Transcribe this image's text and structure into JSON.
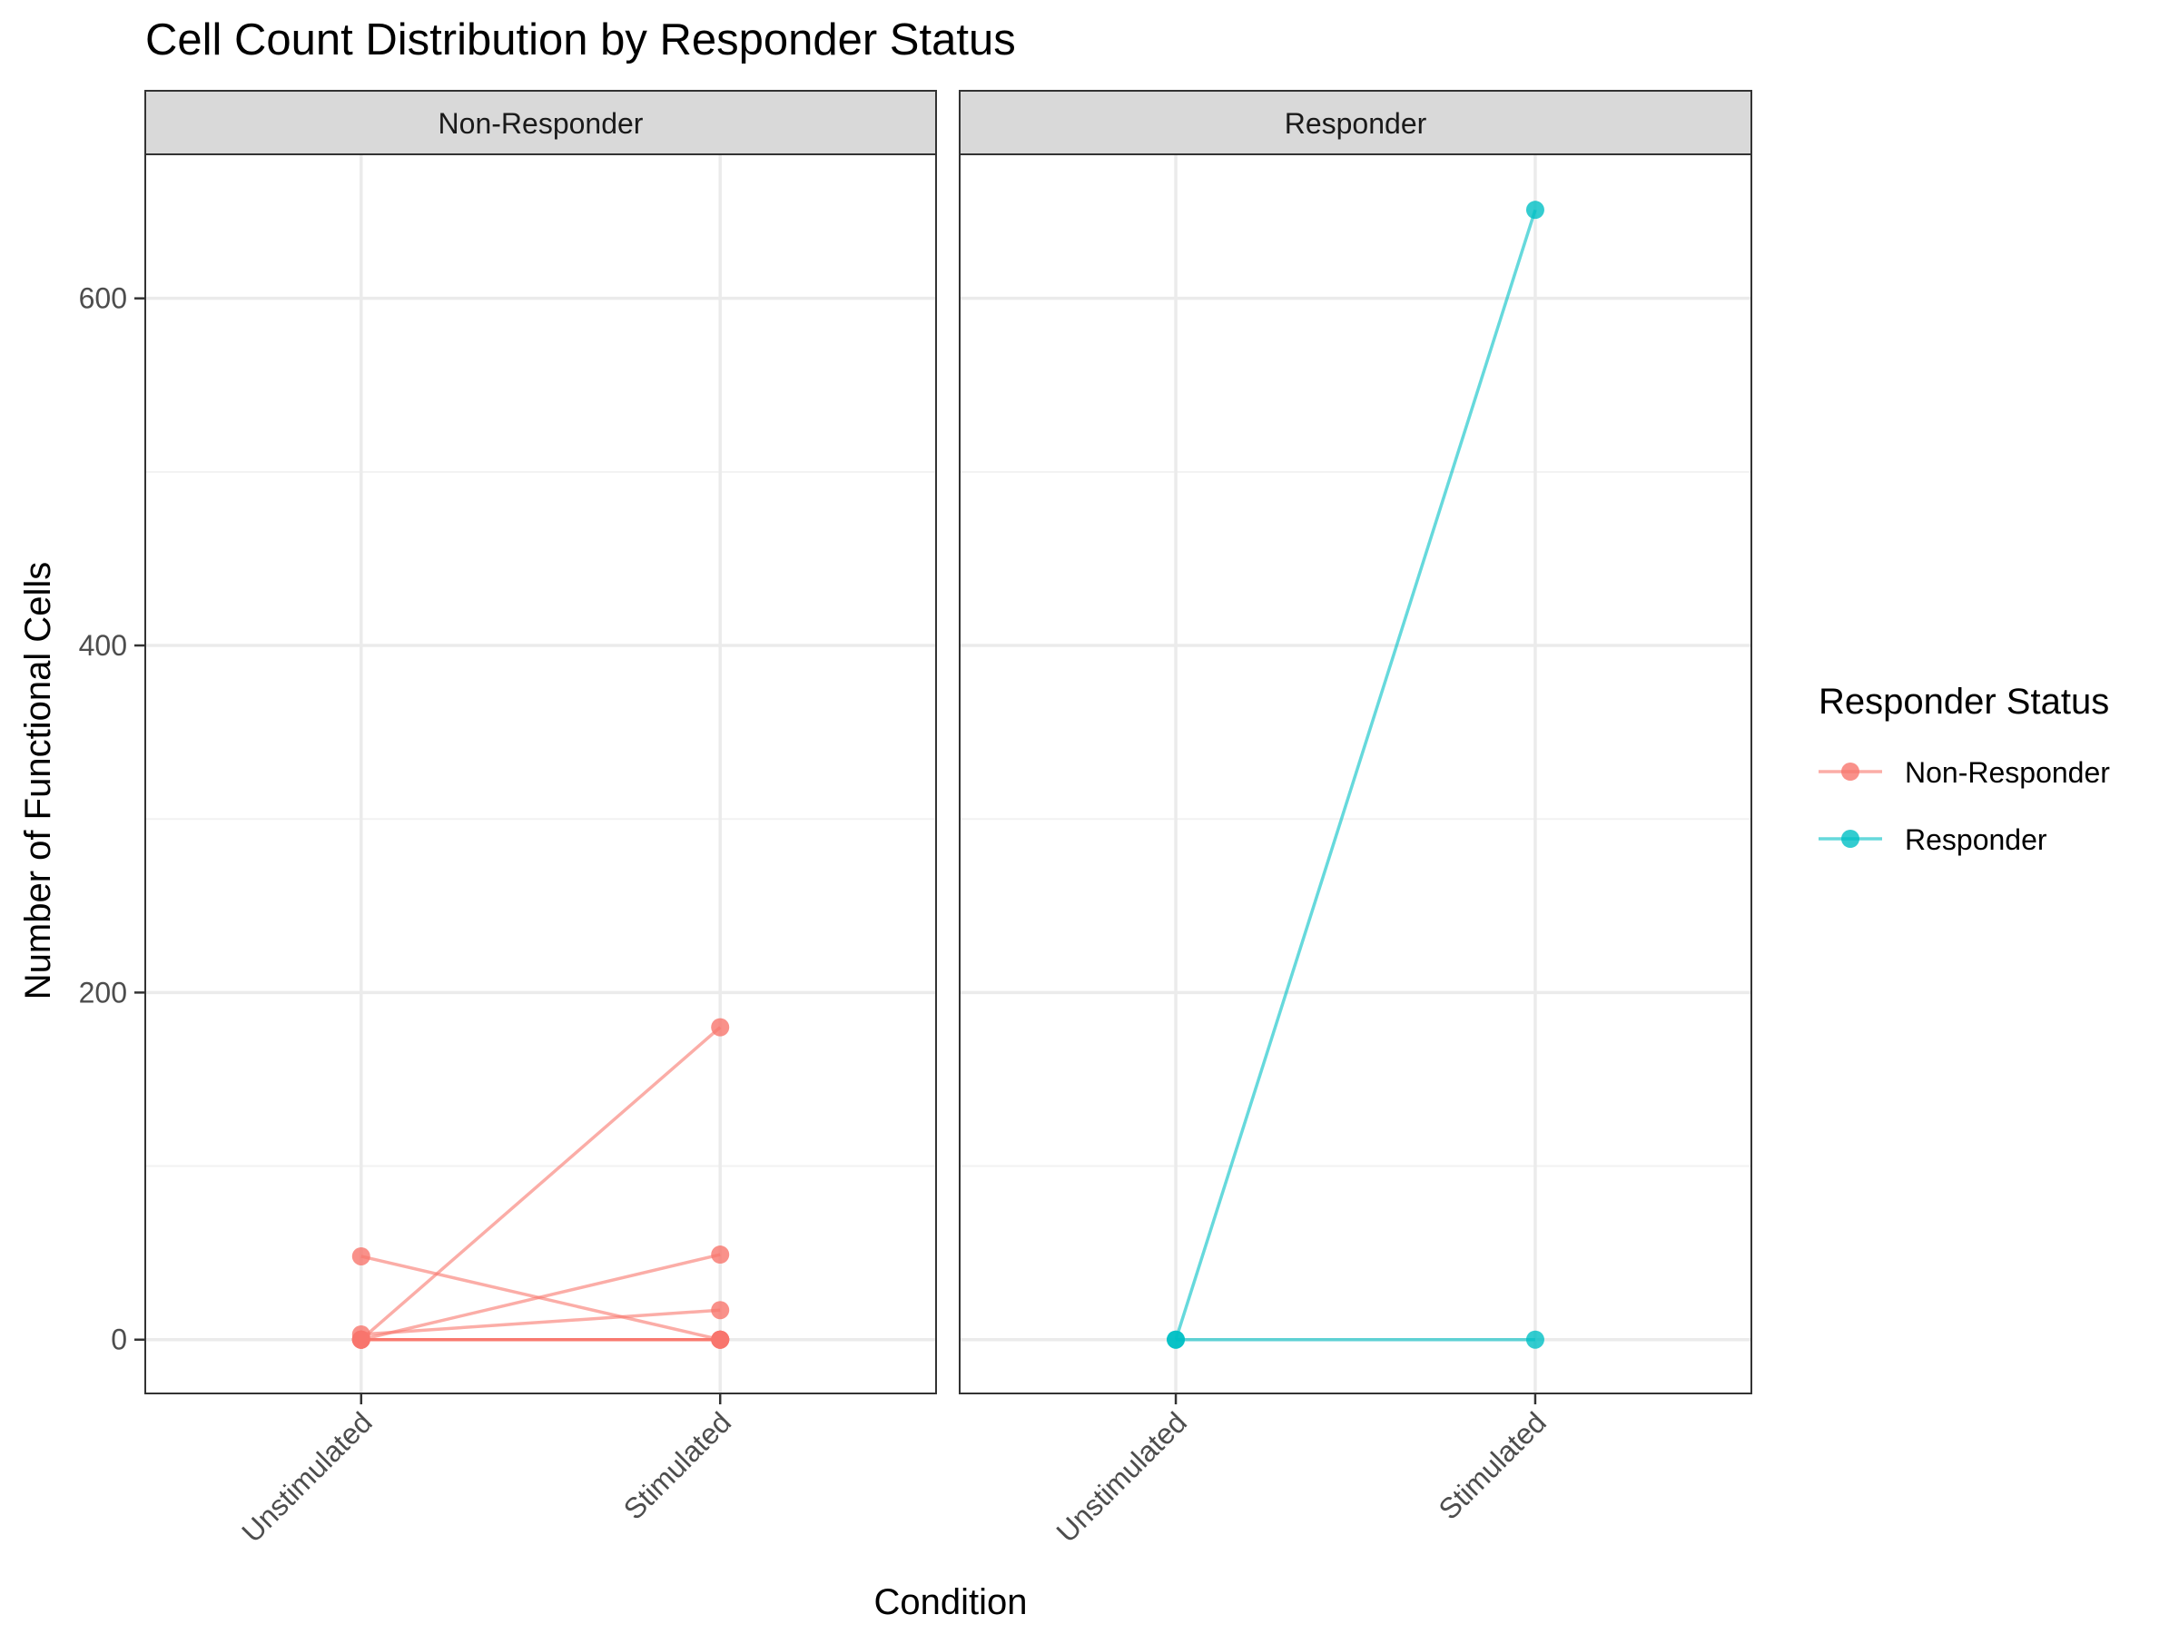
{
  "chart_data": {
    "type": "line",
    "title": "Cell Count Distribution by Responder Status",
    "xlabel": "Condition",
    "ylabel": "Number of Functional Cells",
    "categories": [
      "Unstimulated",
      "Stimulated"
    ],
    "ylim": [
      -31,
      683
    ],
    "y_ticks": [
      0,
      200,
      400,
      600
    ],
    "grid": true,
    "facets": [
      {
        "label": "Non-Responder",
        "color": "#F8766D",
        "pairs": [
          [
            0,
            180
          ],
          [
            48,
            0
          ],
          [
            0,
            49
          ],
          [
            3,
            17
          ],
          [
            0,
            0
          ],
          [
            0,
            0
          ],
          [
            0,
            0
          ],
          [
            0,
            0
          ]
        ]
      },
      {
        "label": "Responder",
        "color": "#00BFC4",
        "pairs": [
          [
            0,
            651
          ],
          [
            0,
            0
          ]
        ]
      }
    ],
    "legend": {
      "title": "Responder Status",
      "position": "right",
      "entries": [
        {
          "label": "Non-Responder",
          "color": "#F8766D"
        },
        {
          "label": "Responder",
          "color": "#00BFC4"
        }
      ]
    }
  }
}
